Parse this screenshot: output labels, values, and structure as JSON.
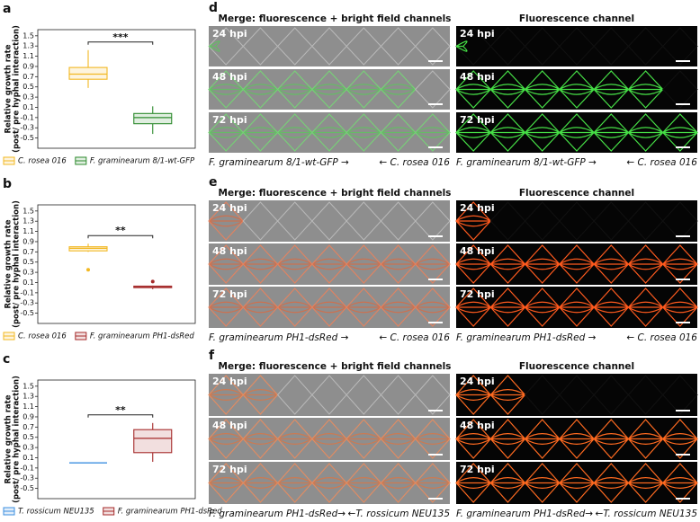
{
  "chart_data": [
    {
      "type": "box",
      "panel": "a",
      "ylabel": [
        "Relative growth rate",
        "(post/ pre hyphal interaction)"
      ],
      "ylim": [
        -0.7,
        1.62
      ],
      "yticks": [
        -0.5,
        -0.3,
        -0.1,
        0.1,
        0.3,
        0.5,
        0.7,
        0.9,
        1.1,
        1.3,
        1.5
      ],
      "significance": "***",
      "series": [
        {
          "name": "C. rosea 016",
          "color": "#f2b822",
          "whisker_low": 0.48,
          "q1": 0.65,
          "median": 0.75,
          "q3": 0.88,
          "whisker_high": 1.22,
          "outliers": []
        },
        {
          "name": "F. graminearum 8/1-wt-GFP",
          "color": "#2e8b2e",
          "whisker_low": -0.42,
          "q1": -0.22,
          "median": -0.1,
          "q3": -0.02,
          "whisker_high": 0.12,
          "outliers": []
        }
      ]
    },
    {
      "type": "box",
      "panel": "b",
      "ylabel": [
        "Relative growth rate",
        "(post/ pre hyphal interaction)"
      ],
      "ylim": [
        -0.7,
        1.62
      ],
      "yticks": [
        -0.5,
        -0.3,
        -0.1,
        0.1,
        0.3,
        0.5,
        0.7,
        0.9,
        1.1,
        1.3,
        1.5
      ],
      "significance": "**",
      "series": [
        {
          "name": "C. rosea 016",
          "color": "#f2b822",
          "whisker_low": 0.7,
          "q1": 0.72,
          "median": 0.77,
          "q3": 0.8,
          "whisker_high": 0.86,
          "outliers": [
            0.35
          ]
        },
        {
          "name": "F. graminearum PH1-dsRed",
          "color": "#a52a2a",
          "whisker_low": -0.03,
          "q1": 0.0,
          "median": 0.02,
          "q3": 0.03,
          "whisker_high": 0.04,
          "outliers": [
            0.12
          ]
        }
      ]
    },
    {
      "type": "box",
      "panel": "c",
      "ylabel": [
        "Relative growth rate",
        "(post/ pre hyphal interaction)"
      ],
      "ylim": [
        -0.7,
        1.62
      ],
      "yticks": [
        -0.5,
        -0.3,
        -0.1,
        0.1,
        0.3,
        0.5,
        0.7,
        0.9,
        1.1,
        1.3,
        1.5
      ],
      "significance": "**",
      "series": [
        {
          "name": "T. rossicum NEU135",
          "color": "#3b8fe0",
          "whisker_low": 0.0,
          "q1": 0.0,
          "median": 0.0,
          "q3": 0.0,
          "whisker_high": 0.0,
          "outliers": []
        },
        {
          "name": "F. graminearum PH1-dsRed",
          "color": "#a52a2a",
          "whisker_low": 0.02,
          "q1": 0.2,
          "median": 0.48,
          "q3": 0.65,
          "whisker_high": 0.78,
          "outliers": []
        }
      ]
    }
  ],
  "panels": [
    {
      "label": "d",
      "rows": [
        "24 hpi",
        "48 hpi",
        "72 hpi"
      ],
      "columns": [
        {
          "title": "Merge: fluorescence + bright field channels",
          "captions": [
            "F. graminearum 8/1-wt-GFP →",
            "← C. rosea 016"
          ]
        },
        {
          "title": "Fluorescence channel",
          "captions": [
            "F. graminearum 8/1-wt-GFP →",
            "← C. rosea 016"
          ]
        }
      ]
    },
    {
      "label": "e",
      "rows": [
        "24 hpi",
        "48 hpi",
        "72 hpi"
      ],
      "columns": [
        {
          "title": "Merge: fluorescence + bright field channels",
          "captions": [
            "F. graminearum PH1-dsRed →",
            "← C. rosea 016"
          ]
        },
        {
          "title": "Fluorescence channel",
          "captions": [
            "F. graminearum PH1-dsRed →",
            "← C. rosea 016"
          ]
        }
      ]
    },
    {
      "label": "f",
      "rows": [
        "24 hpi",
        "48 hpi",
        "72 hpi"
      ],
      "columns": [
        {
          "title": "Merge: fluorescence + bright field channels",
          "captions": [
            "F. graminearum PH1-dsRed→",
            "←T. rossicum NEU135"
          ]
        },
        {
          "title": "Fluorescence channel",
          "captions": [
            "F. graminearum PH1-dsRed→",
            "←T. rossicum NEU135"
          ]
        }
      ]
    }
  ]
}
